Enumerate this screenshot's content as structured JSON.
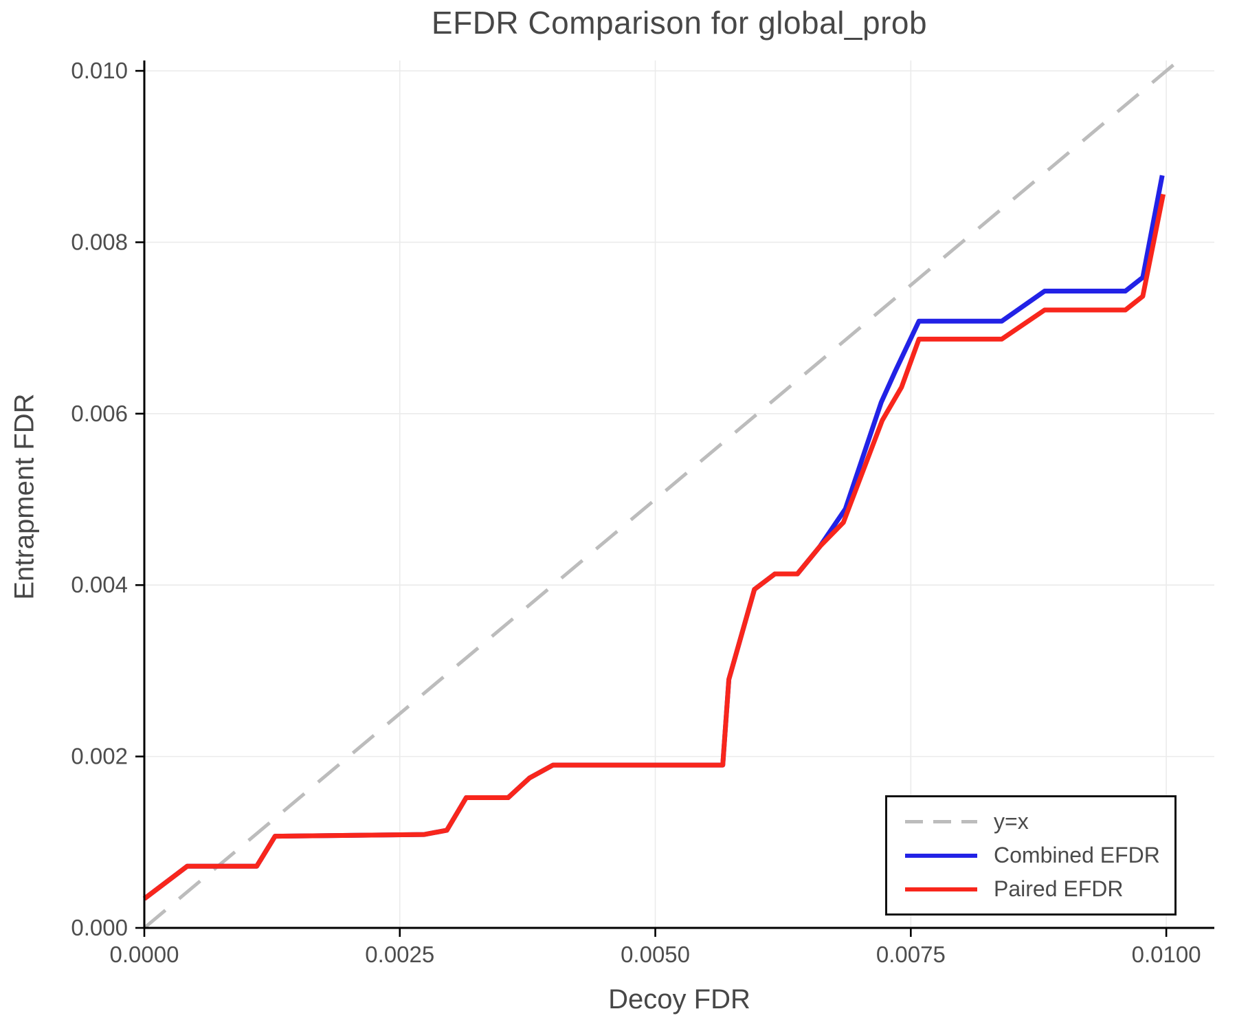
{
  "page": {
    "background": "#ffffff"
  },
  "chart_data": {
    "type": "line",
    "title": "EFDR Comparison for global_prob",
    "xlabel": "Decoy FDR",
    "ylabel": "Entrapment FDR",
    "xlim": [
      0,
      0.01047
    ],
    "ylim": [
      0,
      0.010121
    ],
    "xticks": [
      0,
      0.0025,
      0.005,
      0.0075,
      0.01
    ],
    "xtick_labels": [
      "0.0000",
      "0.0025",
      "0.0050",
      "0.0075",
      "0.0100"
    ],
    "yticks": [
      0,
      0.002,
      0.004,
      0.006,
      0.008,
      0.01
    ],
    "ytick_labels": [
      "0.000",
      "0.002",
      "0.004",
      "0.006",
      "0.008",
      "0.010"
    ],
    "grid": true,
    "legend_position": "lower right",
    "colors": {
      "grid": "#ebebeb",
      "axis": "#000000",
      "text": "#4d4d4d"
    },
    "series": [
      {
        "name": "y=x",
        "style": "dashed",
        "color": "#bcbcbc",
        "x": [
          0,
          0.0101
        ],
        "y": [
          0,
          0.0101
        ]
      },
      {
        "name": "Combined EFDR",
        "style": "solid",
        "color": "#2222e6",
        "x": [
          0.0,
          0.00042,
          0.0011,
          0.00128,
          0.00274,
          0.00296,
          0.00315,
          0.00356,
          0.00377,
          0.004,
          0.00566,
          0.00572,
          0.00597,
          0.00617,
          0.00639,
          0.00661,
          0.00686,
          0.00721,
          0.00735,
          0.00758,
          0.00839,
          0.00881,
          0.0096,
          0.00977,
          0.00996
        ],
        "y": [
          0.00034,
          0.00072,
          0.00072,
          0.00107,
          0.00109,
          0.00114,
          0.00152,
          0.00152,
          0.00175,
          0.0019,
          0.0019,
          0.0029,
          0.00395,
          0.00413,
          0.00413,
          0.00445,
          0.00489,
          0.00613,
          0.0065,
          0.00708,
          0.00708,
          0.00743,
          0.00743,
          0.00759,
          0.00878
        ]
      },
      {
        "name": "Paired EFDR",
        "style": "solid",
        "color": "#f8261c",
        "x": [
          0.0,
          0.00042,
          0.0011,
          0.00128,
          0.00274,
          0.00296,
          0.00315,
          0.00356,
          0.00377,
          0.004,
          0.00566,
          0.00572,
          0.00597,
          0.00617,
          0.00639,
          0.00661,
          0.00684,
          0.00722,
          0.00741,
          0.00758,
          0.00839,
          0.00881,
          0.0096,
          0.00977,
          0.00997
        ],
        "y": [
          0.00034,
          0.00072,
          0.00072,
          0.00107,
          0.00109,
          0.00114,
          0.00152,
          0.00152,
          0.00175,
          0.0019,
          0.0019,
          0.0029,
          0.00395,
          0.00413,
          0.00413,
          0.00445,
          0.00473,
          0.00592,
          0.00631,
          0.00687,
          0.00687,
          0.00721,
          0.00721,
          0.00737,
          0.00856
        ]
      }
    ]
  }
}
